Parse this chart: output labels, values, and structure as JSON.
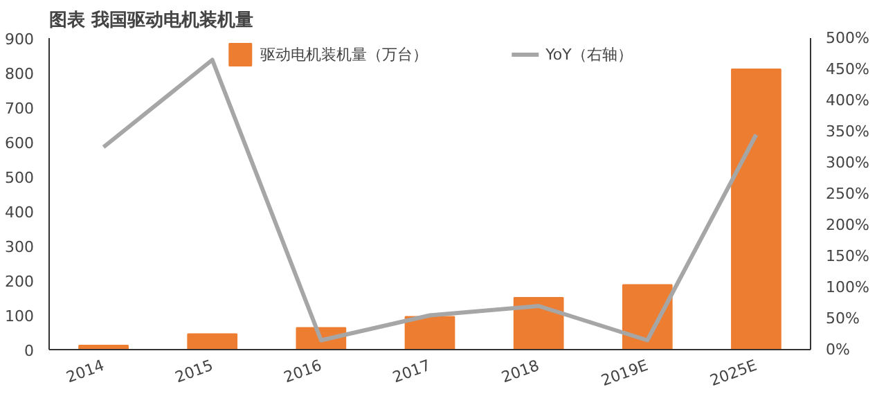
{
  "chart_data": {
    "type": "bar",
    "title": "图表  我国驱动电机装机量",
    "categories": [
      "2014",
      "2015",
      "2016",
      "2017",
      "2018",
      "2019E",
      "2025E"
    ],
    "series": [
      {
        "name": "驱动电机装机量（万台）",
        "color": "#ed7d31",
        "values": [
          12,
          45,
          63,
          95,
          150,
          187,
          810
        ]
      },
      {
        "name": "YoY（右轴）",
        "type": "line",
        "axis": "y2",
        "color": "#a6a6a6",
        "values": [
          325,
          465,
          15,
          55,
          70,
          15,
          345
        ]
      }
    ],
    "ylim": [
      0,
      900
    ],
    "yticks": [
      0,
      100,
      200,
      300,
      400,
      500,
      600,
      700,
      800,
      900
    ],
    "y2lim": [
      0,
      500
    ],
    "y2ticks": [
      {
        "value": 0,
        "label": "0%"
      },
      {
        "value": 50,
        "label": "50%"
      },
      {
        "value": 100,
        "label": "100%"
      },
      {
        "value": 150,
        "label": "150%"
      },
      {
        "value": 200,
        "label": "200%"
      },
      {
        "value": 250,
        "label": "250%"
      },
      {
        "value": 300,
        "label": "300%"
      },
      {
        "value": 350,
        "label": "350%"
      },
      {
        "value": 400,
        "label": "400%"
      },
      {
        "value": 450,
        "label": "450%"
      },
      {
        "value": 500,
        "label": "500%"
      }
    ],
    "legend": "top",
    "grid": false
  }
}
